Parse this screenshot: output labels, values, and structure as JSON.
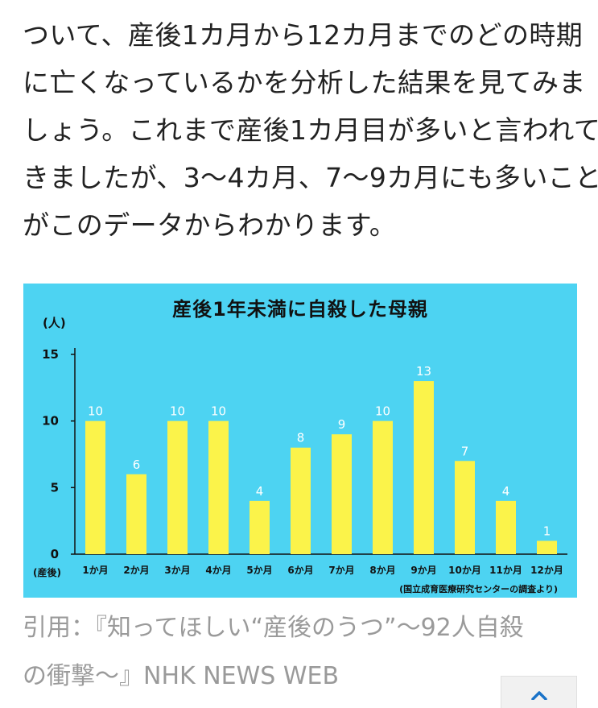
{
  "article": {
    "lines": [
      "ついて、産後1カ月から12カ月までのどの時期",
      "に亡くなっているかを分析した結果を見てみま",
      "しょう。これまで産後1カ月目が多いと言われて",
      "きましたが、3〜4カ月、7〜9カ月にも多いこと",
      "がこのデータからわかります。"
    ]
  },
  "chart_data": {
    "type": "bar",
    "title": "産後1年未満に自殺した母親",
    "ylabel": "(人)",
    "xlabel_prefix": "(産後)",
    "categories": [
      "1か月",
      "2か月",
      "3か月",
      "4か月",
      "5か月",
      "6か月",
      "7か月",
      "8か月",
      "9か月",
      "10か月",
      "11か月",
      "12か月"
    ],
    "values": [
      10,
      6,
      10,
      10,
      4,
      8,
      9,
      10,
      13,
      7,
      4,
      1
    ],
    "yticks": [
      0,
      5,
      10,
      15
    ],
    "ylim": [
      0,
      15
    ],
    "grid": false,
    "source": "(国立成育医療研究センターの調査より)",
    "colors": {
      "background": "#4dd3f2",
      "bar": "#fbf34a",
      "label": "#ffffff",
      "axis": "#111111"
    }
  },
  "citation": {
    "lines": [
      "引用：『知ってほしい“産後のうつ”〜92人自殺",
      "の衝撃〜』NHK NEWS WEB"
    ]
  },
  "scroll_top_button": {
    "icon": "chevron-up-icon",
    "color": "#1a73c8"
  }
}
